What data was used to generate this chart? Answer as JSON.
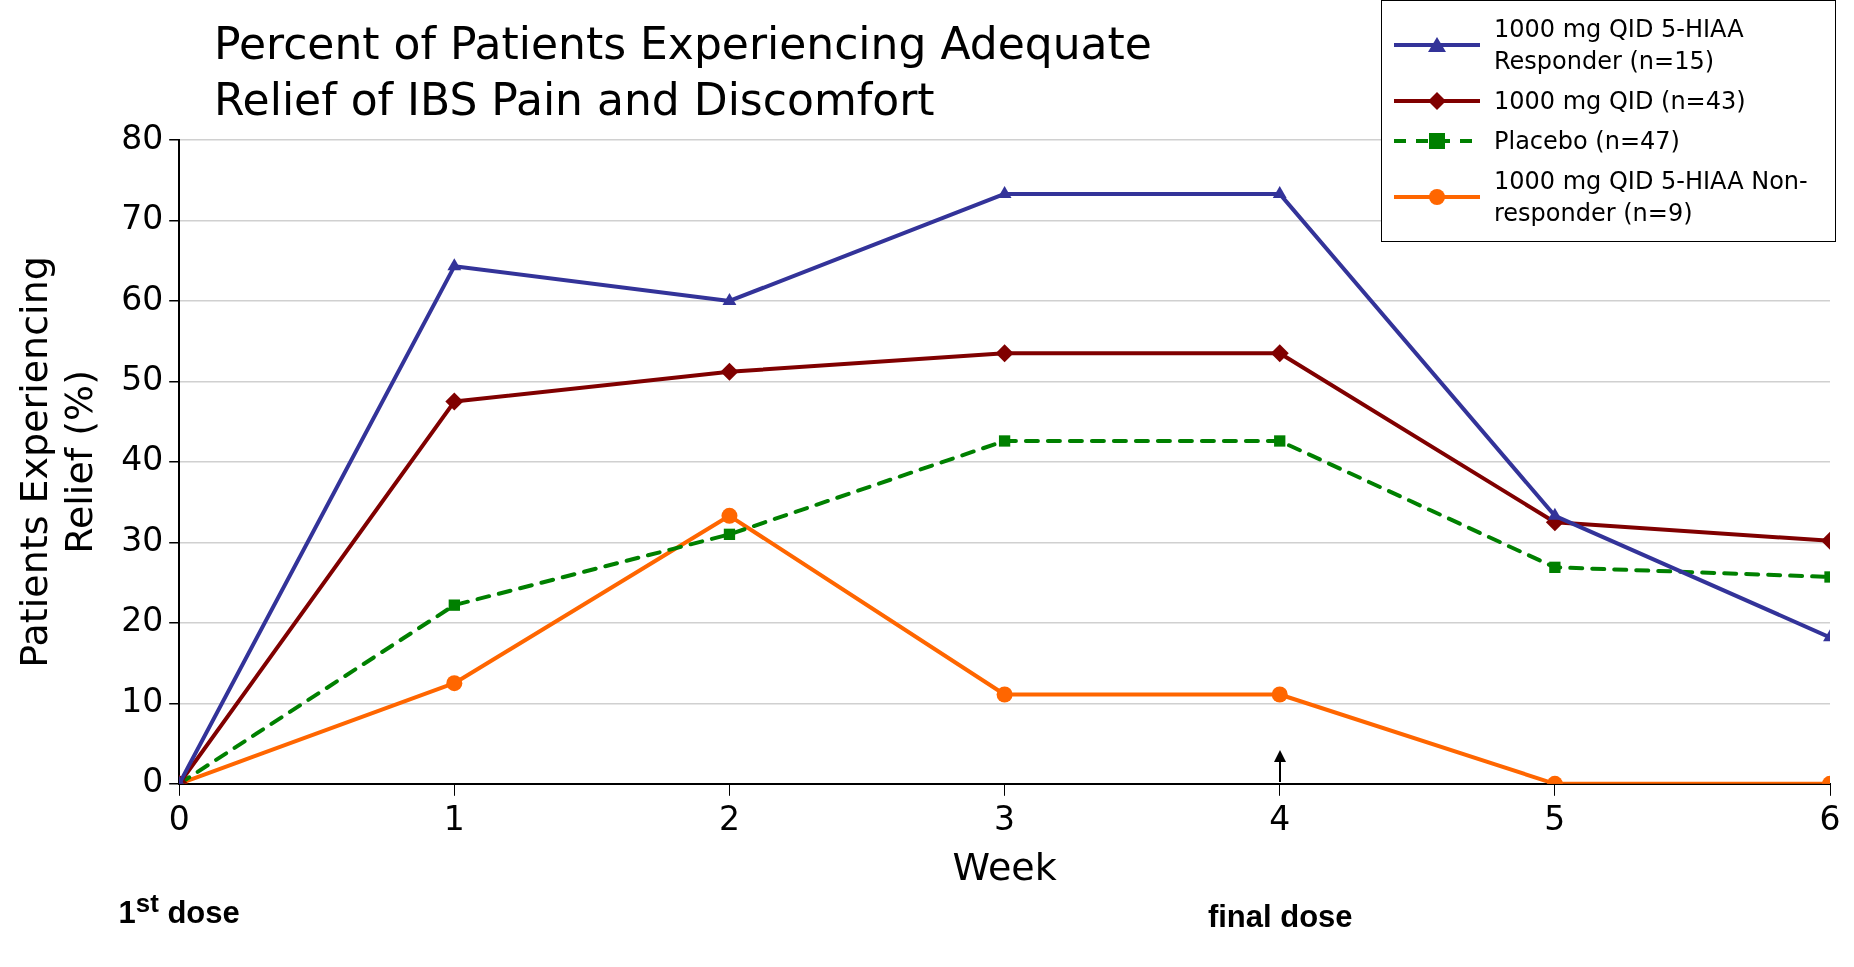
{
  "chart_data": {
    "type": "line",
    "title": "Percent of Patients Experiencing Adequate Relief of IBS Pain and Discomfort",
    "xlabel": "Week",
    "ylabel": "Patients Experiencing Relief (%)",
    "x": [
      0,
      1,
      2,
      3,
      4,
      5,
      6
    ],
    "series": [
      {
        "name": "1000 mg QID 5-HIAA Responder (n=15)",
        "color": "#333399",
        "marker": "triangle",
        "line_style": "solid",
        "values": [
          0,
          64.3,
          60,
          73.3,
          73.3,
          33.3,
          18.2
        ]
      },
      {
        "name": "1000 mg QID (n=43)",
        "color": "#800000",
        "marker": "diamond",
        "line_style": "solid",
        "values": [
          0,
          47.5,
          51.2,
          53.5,
          53.5,
          32.5,
          30.2
        ]
      },
      {
        "name": "Placebo (n=47)",
        "color": "#008000",
        "marker": "square",
        "line_style": "dashed",
        "values": [
          0,
          22.2,
          31,
          42.6,
          42.6,
          26.9,
          25.7
        ]
      },
      {
        "name": "1000 mg QID 5-HIAA Non-responder (n=9)",
        "color": "#ff6600",
        "marker": "circle",
        "line_style": "solid",
        "values": [
          0,
          12.5,
          33.3,
          11.1,
          11.1,
          0,
          0
        ]
      }
    ],
    "xlim": [
      0,
      6
    ],
    "xticks": [
      0,
      1,
      2,
      3,
      4,
      5,
      6
    ],
    "ylim": [
      0,
      80
    ],
    "yticks": [
      0,
      10,
      20,
      30,
      40,
      50,
      60,
      70,
      80
    ],
    "grid": "y",
    "legend": "top right",
    "annotations": [
      "1$^{st}$ dose",
      "final dose"
    ]
  }
}
